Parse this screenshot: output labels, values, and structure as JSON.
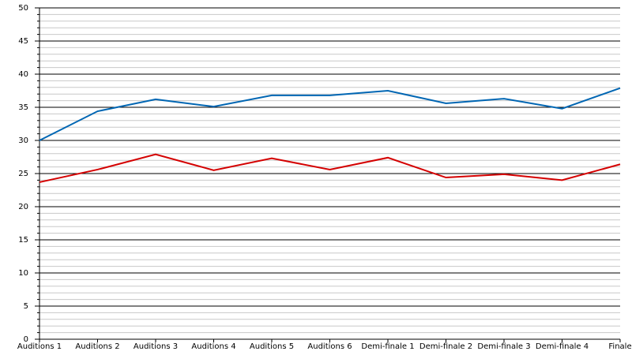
{
  "chart_data": {
    "type": "line",
    "categories": [
      "Auditions 1",
      "Auditions 2",
      "Auditions 3",
      "Auditions 4",
      "Auditions 5",
      "Auditions 6",
      "Demi-finale 1",
      "Demi-finale 2",
      "Demi-finale 3",
      "Demi-finale 4",
      "Finale"
    ],
    "series": [
      {
        "color": "#0066b3",
        "values": [
          30.0,
          34.4,
          36.2,
          35.1,
          36.8,
          36.8,
          37.5,
          35.6,
          36.3,
          34.8,
          37.9
        ]
      },
      {
        "color": "#d40000",
        "values": [
          23.7,
          25.6,
          27.9,
          25.5,
          27.3,
          25.6,
          27.4,
          24.4,
          24.9,
          24.0,
          26.4
        ]
      }
    ],
    "ylim": [
      0,
      50
    ],
    "yticks": [
      0,
      5,
      10,
      15,
      20,
      25,
      30,
      35,
      40,
      45,
      50
    ],
    "grid": true,
    "minor_grid": true
  }
}
